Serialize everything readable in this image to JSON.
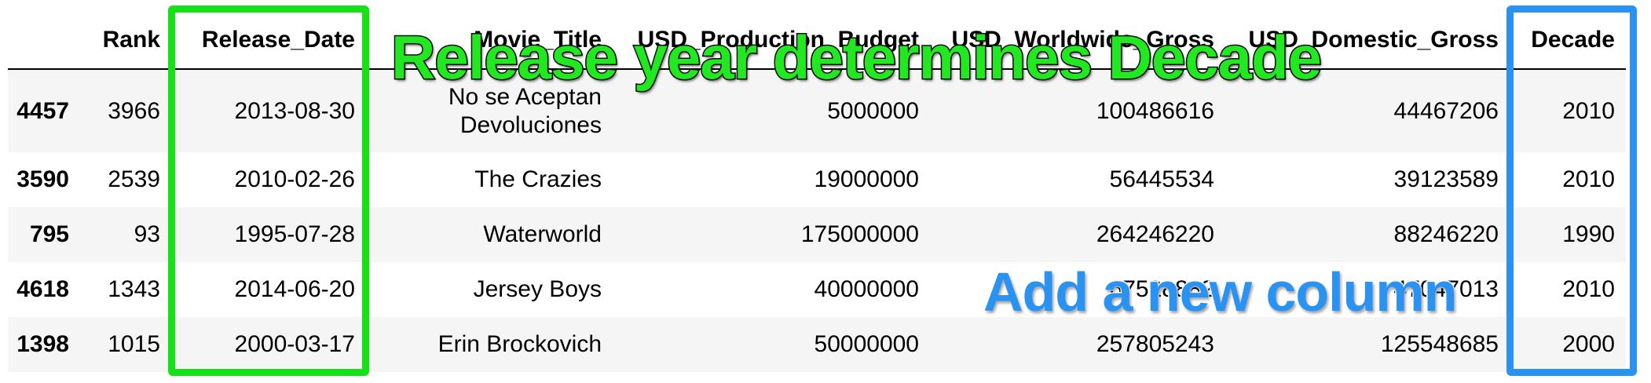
{
  "table": {
    "columns": [
      "",
      "Rank",
      "Release_Date",
      "Movie_Title",
      "USD_Production_Budget",
      "USD_Worldwide_Gross",
      "USD_Domestic_Gross",
      "Decade"
    ],
    "rows": [
      {
        "index": "4457",
        "rank": "3966",
        "release_date": "2013-08-30",
        "movie_title": "No se Aceptan Devoluciones",
        "budget": "5000000",
        "worldwide": "100486616",
        "domestic": "44467206",
        "decade": "2010"
      },
      {
        "index": "3590",
        "rank": "2539",
        "release_date": "2010-02-26",
        "movie_title": "The Crazies",
        "budget": "19000000",
        "worldwide": "56445534",
        "domestic": "39123589",
        "decade": "2010"
      },
      {
        "index": "795",
        "rank": "93",
        "release_date": "1995-07-28",
        "movie_title": "Waterworld",
        "budget": "175000000",
        "worldwide": "264246220",
        "domestic": "88246220",
        "decade": "1990"
      },
      {
        "index": "4618",
        "rank": "1343",
        "release_date": "2014-06-20",
        "movie_title": "Jersey Boys",
        "budget": "40000000",
        "worldwide": "67528882",
        "domestic": "47047013",
        "decade": "2010"
      },
      {
        "index": "1398",
        "rank": "1015",
        "release_date": "2000-03-17",
        "movie_title": "Erin Brockovich",
        "budget": "50000000",
        "worldwide": "257805243",
        "domestic": "125548685",
        "decade": "2000"
      }
    ]
  },
  "annotations": {
    "green_caption": "Release year determines Decade",
    "blue_caption": "Add a new column",
    "green_color": "#16e016",
    "blue_color": "#2a93f2"
  }
}
